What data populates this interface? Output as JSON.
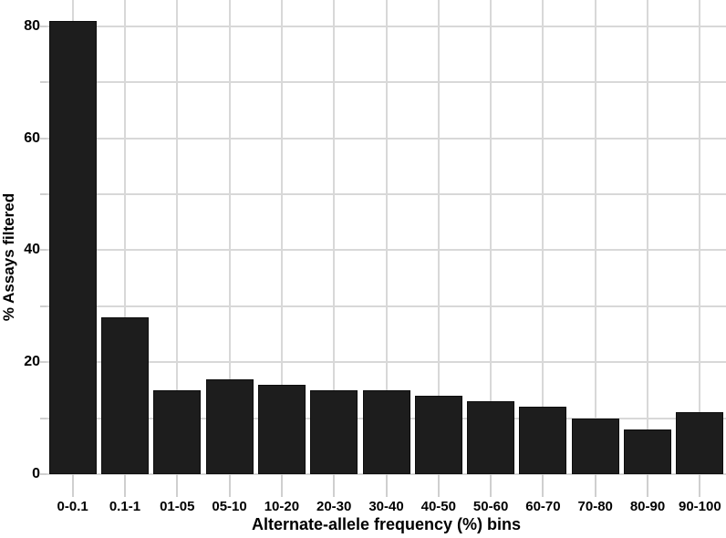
{
  "chart_data": {
    "type": "bar",
    "title": "",
    "xlabel": "Alternate-allele frequency (%) bins",
    "ylabel": "% Assays filtered",
    "categories": [
      "0-0.1",
      "0.1-1",
      "01-05",
      "05-10",
      "10-20",
      "20-30",
      "30-40",
      "40-50",
      "50-60",
      "60-70",
      "70-80",
      "80-90",
      "90-100"
    ],
    "values": [
      81,
      28,
      15,
      17,
      16,
      15,
      15,
      14,
      13,
      12,
      10,
      8,
      11
    ],
    "yticks": [
      0,
      20,
      40,
      60,
      80
    ],
    "gridlines_y": [
      0,
      10,
      20,
      30,
      40,
      50,
      60,
      70,
      80
    ],
    "ylim": [
      0,
      84.7
    ],
    "grid": true,
    "legend": "none",
    "colors": {
      "bar_fill": "#1d1d1d",
      "bar_border": "#0d0d0d",
      "gridline": "#d8d8d8",
      "tick": "#cfcfcf",
      "text": "#000000",
      "background": "#ffffff"
    }
  }
}
